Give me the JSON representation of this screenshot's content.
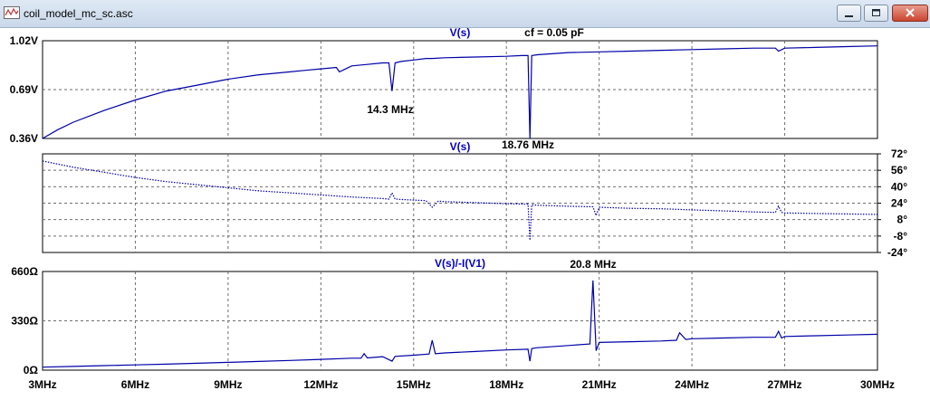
{
  "window": {
    "title": "coil_model_mc_sc.asc"
  },
  "chart_data": [
    {
      "type": "line",
      "panel": "magnitude",
      "title": "V(s)",
      "annotations": [
        {
          "text": "cf = 0.05 pF"
        },
        {
          "text": "14.3 MHz"
        },
        {
          "text": "18.76 MHz"
        }
      ],
      "ylim": [
        0.36,
        1.02
      ],
      "yticks": [
        1.02,
        0.69,
        0.36
      ],
      "ytick_labels": [
        "1.02V",
        "0.69V",
        "0.36V"
      ],
      "xlim": [
        3,
        30
      ],
      "grid": true,
      "line_color": "#0000a8",
      "x": [
        3,
        3.5,
        4,
        5,
        6,
        7,
        8,
        9,
        10,
        10.5,
        11,
        11.5,
        12,
        12.5,
        12.6,
        13,
        13.5,
        14,
        14.2,
        14.3,
        14.4,
        14.6,
        15,
        15.4,
        15.6,
        16,
        17,
        18,
        18.5,
        18.7,
        18.76,
        18.82,
        19,
        20,
        21,
        22,
        23,
        24,
        25,
        26,
        26.7,
        26.8,
        27,
        28,
        29,
        30
      ],
      "y": [
        0.36,
        0.42,
        0.47,
        0.55,
        0.62,
        0.68,
        0.72,
        0.76,
        0.79,
        0.8,
        0.81,
        0.82,
        0.83,
        0.84,
        0.81,
        0.85,
        0.86,
        0.87,
        0.87,
        0.68,
        0.87,
        0.88,
        0.89,
        0.9,
        0.9,
        0.905,
        0.91,
        0.915,
        0.92,
        0.92,
        0.36,
        0.92,
        0.925,
        0.94,
        0.945,
        0.95,
        0.955,
        0.96,
        0.965,
        0.97,
        0.97,
        0.95,
        0.97,
        0.975,
        0.98,
        0.985
      ]
    },
    {
      "type": "line",
      "panel": "phase",
      "title": "V(s)",
      "annotations": [],
      "ylim": [
        -24,
        72
      ],
      "yticks": [
        72,
        56,
        40,
        24,
        8,
        -8,
        -24
      ],
      "ytick_labels": [
        "72°",
        "56°",
        "40°",
        "24°",
        "8°",
        "-8°",
        "-24°"
      ],
      "xlim": [
        3,
        30
      ],
      "grid": true,
      "line_style": "dotted",
      "line_color": "#0000a8",
      "x": [
        3,
        4,
        5,
        6,
        7,
        8,
        9,
        10,
        11,
        12,
        13,
        14,
        14.2,
        14.3,
        14.4,
        15,
        15.4,
        15.6,
        15.8,
        16,
        17,
        18,
        18.7,
        18.76,
        18.82,
        19,
        20,
        20.8,
        20.9,
        21,
        22,
        23,
        24,
        25,
        26,
        26.7,
        26.8,
        26.9,
        27,
        28,
        29,
        30
      ],
      "y": [
        65,
        59,
        54,
        49,
        45,
        42,
        39,
        36,
        34,
        32,
        30,
        28.5,
        28,
        34,
        28,
        27,
        26.5,
        20,
        26,
        25.5,
        24.5,
        23.5,
        23,
        -12,
        22.5,
        22,
        21,
        20.5,
        12,
        20,
        19,
        18.5,
        17.5,
        16.5,
        15.5,
        15,
        21,
        15,
        14.5,
        14,
        13.5,
        13
      ]
    },
    {
      "type": "line",
      "panel": "impedance",
      "title": "V(s)/-I(V1)",
      "annotations": [
        {
          "text": "20.8 MHz"
        }
      ],
      "ylim": [
        0,
        660
      ],
      "yticks": [
        660,
        330,
        0
      ],
      "ytick_labels": [
        "660Ω",
        "330Ω",
        "0Ω"
      ],
      "xlim": [
        3,
        30
      ],
      "xticks": [
        3,
        6,
        9,
        12,
        15,
        18,
        21,
        24,
        27,
        30
      ],
      "xtick_labels": [
        "3MHz",
        "6MHz",
        "9MHz",
        "12MHz",
        "15MHz",
        "18MHz",
        "21MHz",
        "24MHz",
        "27MHz",
        "30MHz"
      ],
      "grid": true,
      "line_color": "#0000a8",
      "x": [
        3,
        4,
        5,
        6,
        7,
        8,
        9,
        10,
        11,
        12,
        13,
        13.3,
        13.4,
        13.5,
        14,
        14.3,
        14.4,
        15,
        15.5,
        15.6,
        15.7,
        16,
        17,
        18,
        18.7,
        18.76,
        18.82,
        19,
        20,
        20.7,
        20.8,
        20.9,
        21,
        22,
        23,
        23.5,
        23.6,
        23.8,
        24,
        25,
        26,
        26.7,
        26.8,
        26.9,
        27,
        28,
        29,
        30
      ],
      "y": [
        20,
        25,
        30,
        35,
        40,
        46,
        52,
        58,
        65,
        72,
        80,
        80,
        110,
        82,
        90,
        60,
        92,
        100,
        108,
        200,
        110,
        115,
        125,
        135,
        140,
        60,
        145,
        150,
        165,
        175,
        600,
        130,
        185,
        190,
        195,
        200,
        250,
        205,
        210,
        215,
        220,
        220,
        260,
        215,
        225,
        230,
        235,
        240
      ]
    }
  ]
}
